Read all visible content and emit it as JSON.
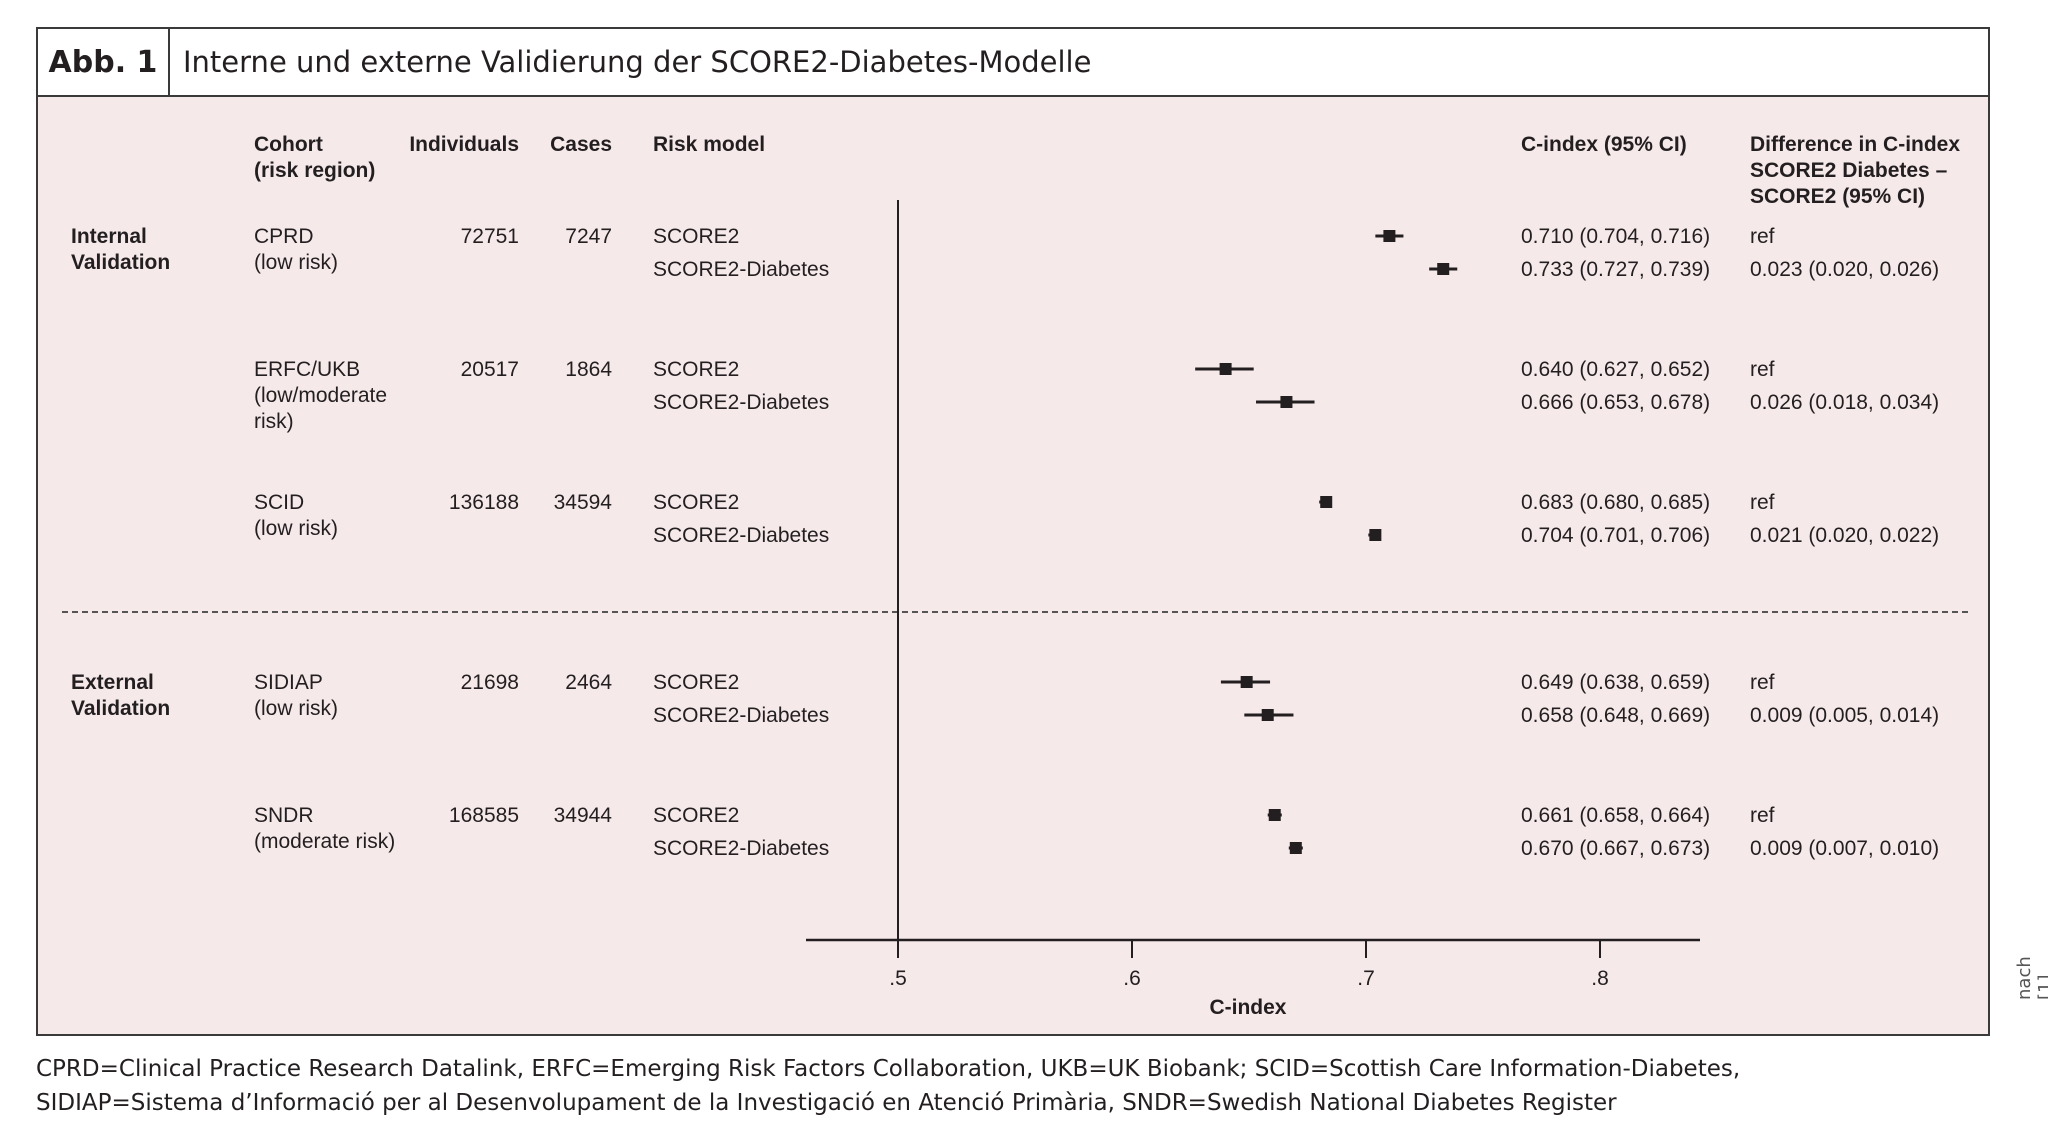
{
  "figure": {
    "label": "Abb. 1",
    "title": "Interne und externe Validierung der SCORE2-Diabetes-Modelle",
    "source": "nach [1]",
    "footnote_line1": "CPRD=Clinical Practice Research Datalink, ERFC=Emerging Risk Factors Collaboration, UKB=UK Biobank; SCID=Scottish Care Information-Diabetes,",
    "footnote_line2": "SIDIAP=Sistema d’Informació per al Desenvolupament de la Investigació en Atenció Primària, SNDR=Swedish National Diabetes Register"
  },
  "headers": {
    "cohort": [
      "Cohort",
      "(risk region)"
    ],
    "individuals": "Individuals",
    "cases": "Cases",
    "risk_model": "Risk model",
    "cindex": "C-index (95% CI)",
    "difference": [
      "Difference in C-index",
      "SCORE2 Diabetes –",
      "SCORE2 (95% CI)"
    ]
  },
  "colors": {
    "panel_bg": "#f6e9ea",
    "ink": "#231f20",
    "marker": "#231f20"
  },
  "chart_data": {
    "type": "forest",
    "xlabel": "C-index",
    "x_ticks": [
      ".5",
      ".6",
      ".7",
      ".8"
    ],
    "x_tick_values": [
      0.5,
      0.6,
      0.7,
      0.8
    ],
    "reference_line": 0.5,
    "groups": [
      {
        "label": [
          "Internal",
          "Validation"
        ],
        "cohorts": [
          {
            "cohort": [
              "CPRD",
              "(low risk)"
            ],
            "individuals": "72751",
            "cases": "7247",
            "models": [
              {
                "model": "SCORE2",
                "est": 0.71,
                "lo": 0.704,
                "hi": 0.716,
                "ci_text": "0.710 (0.704, 0.716)",
                "diff": "ref"
              },
              {
                "model": "SCORE2-Diabetes",
                "est": 0.733,
                "lo": 0.727,
                "hi": 0.739,
                "ci_text": "0.733 (0.727, 0.739)",
                "diff": "0.023 (0.020, 0.026)"
              }
            ]
          },
          {
            "cohort": [
              "ERFC/UKB",
              "(low/moderate",
              "risk)"
            ],
            "individuals": "20517",
            "cases": "1864",
            "models": [
              {
                "model": "SCORE2",
                "est": 0.64,
                "lo": 0.627,
                "hi": 0.652,
                "ci_text": "0.640 (0.627, 0.652)",
                "diff": "ref"
              },
              {
                "model": "SCORE2-Diabetes",
                "est": 0.666,
                "lo": 0.653,
                "hi": 0.678,
                "ci_text": "0.666 (0.653, 0.678)",
                "diff": "0.026 (0.018, 0.034)"
              }
            ]
          },
          {
            "cohort": [
              "SCID",
              "(low risk)"
            ],
            "individuals": "136188",
            "cases": "34594",
            "models": [
              {
                "model": "SCORE2",
                "est": 0.683,
                "lo": 0.68,
                "hi": 0.685,
                "ci_text": "0.683 (0.680, 0.685)",
                "diff": "ref"
              },
              {
                "model": "SCORE2-Diabetes",
                "est": 0.704,
                "lo": 0.701,
                "hi": 0.706,
                "ci_text": "0.704 (0.701, 0.706)",
                "diff": "0.021 (0.020, 0.022)"
              }
            ]
          }
        ]
      },
      {
        "label": [
          "External",
          "Validation"
        ],
        "cohorts": [
          {
            "cohort": [
              "SIDIAP",
              "(low risk)"
            ],
            "individuals": "21698",
            "cases": "2464",
            "models": [
              {
                "model": "SCORE2",
                "est": 0.649,
                "lo": 0.638,
                "hi": 0.659,
                "ci_text": "0.649 (0.638, 0.659)",
                "diff": "ref"
              },
              {
                "model": "SCORE2-Diabetes",
                "est": 0.658,
                "lo": 0.648,
                "hi": 0.669,
                "ci_text": "0.658 (0.648, 0.669)",
                "diff": "0.009 (0.005, 0.014)"
              }
            ]
          },
          {
            "cohort": [
              "SNDR",
              "(moderate risk)"
            ],
            "individuals": "168585",
            "cases": "34944",
            "models": [
              {
                "model": "SCORE2",
                "est": 0.661,
                "lo": 0.658,
                "hi": 0.664,
                "ci_text": "0.661 (0.658, 0.664)",
                "diff": "ref"
              },
              {
                "model": "SCORE2-Diabetes",
                "est": 0.67,
                "lo": 0.667,
                "hi": 0.673,
                "ci_text": "0.670 (0.667, 0.673)",
                "diff": "0.009 (0.007, 0.010)"
              }
            ]
          }
        ]
      }
    ]
  }
}
